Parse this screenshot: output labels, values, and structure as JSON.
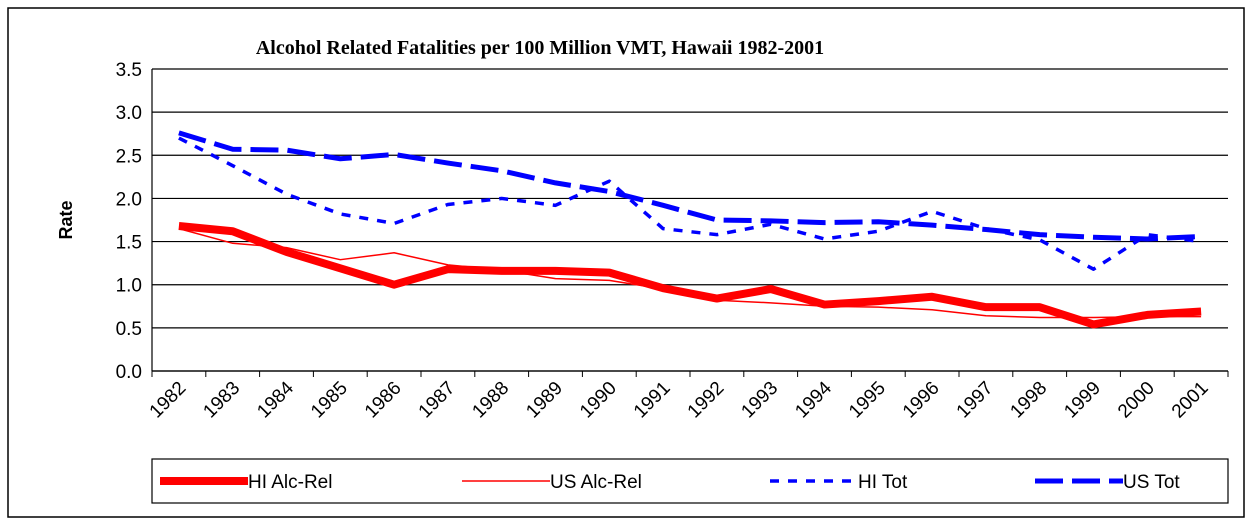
{
  "chart_data": {
    "type": "line",
    "title": "Alcohol Related Fatalities per 100 Million VMT, Hawaii 1982-2001",
    "y_label": "Rate",
    "categories": [
      "1982",
      "1983",
      "1984",
      "1985",
      "1986",
      "1987",
      "1988",
      "1989",
      "1990",
      "1991",
      "1992",
      "1993",
      "1994",
      "1995",
      "1996",
      "1997",
      "1998",
      "1999",
      "2000",
      "2001"
    ],
    "series": [
      {
        "name": "HI Alc-Rel",
        "color": "#ff0000",
        "style": "thick",
        "values": [
          1.68,
          1.62,
          1.38,
          1.19,
          1.0,
          1.18,
          1.16,
          1.16,
          1.14,
          0.96,
          0.84,
          0.95,
          0.77,
          0.81,
          0.86,
          0.74,
          0.74,
          0.54,
          0.65,
          0.69
        ]
      },
      {
        "name": "US Alc-Rel",
        "color": "#ff0000",
        "style": "thin",
        "values": [
          1.65,
          1.48,
          1.43,
          1.29,
          1.37,
          1.23,
          1.17,
          1.07,
          1.05,
          0.95,
          0.82,
          0.79,
          0.75,
          0.74,
          0.71,
          0.64,
          0.62,
          0.62,
          0.63,
          0.63
        ]
      },
      {
        "name": "HI Tot",
        "color": "#0000ff",
        "style": "dotted",
        "values": [
          2.7,
          2.38,
          2.05,
          1.82,
          1.71,
          1.93,
          2.0,
          1.92,
          2.2,
          1.65,
          1.58,
          1.7,
          1.53,
          1.62,
          1.85,
          1.65,
          1.52,
          1.18,
          1.58,
          1.5
        ]
      },
      {
        "name": "US Tot",
        "color": "#0000ff",
        "style": "dashed",
        "values": [
          2.76,
          2.57,
          2.56,
          2.46,
          2.51,
          2.41,
          2.32,
          2.18,
          2.08,
          1.92,
          1.75,
          1.74,
          1.72,
          1.73,
          1.69,
          1.64,
          1.58,
          1.55,
          1.53,
          1.56
        ]
      }
    ],
    "ylim": [
      0,
      3.5
    ],
    "yticks": [
      {
        "value": 0,
        "label": "0.0"
      },
      0.5,
      {
        "value": 1,
        "label": "1.0"
      },
      1.5,
      {
        "value": 2,
        "label": "2.0"
      },
      2.5,
      {
        "value": 3,
        "label": "3.0"
      },
      3.5
    ],
    "grid": true,
    "legend": "bottom"
  }
}
